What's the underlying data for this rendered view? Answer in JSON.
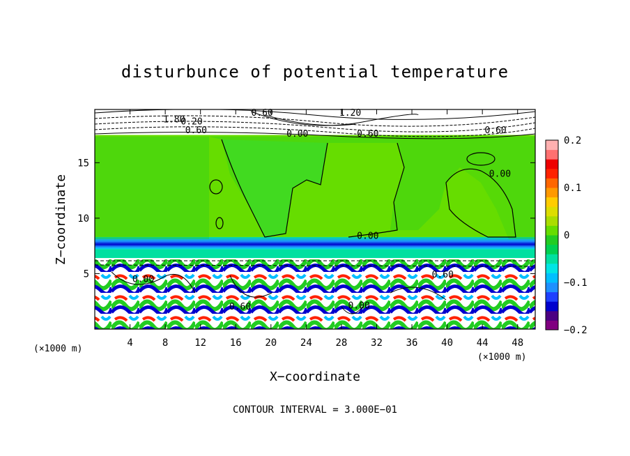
{
  "chart_data": {
    "type": "heatmap",
    "title": "disturbunce of potential temperature",
    "xlabel": "X−coordinate",
    "ylabel": "Z−coordinate",
    "x_unit_left": "(×1000 m)",
    "x_unit_right": "(×1000 m)",
    "xlim": [
      0,
      50
    ],
    "ylim": [
      0,
      19.8
    ],
    "x_ticks": [
      4,
      8,
      12,
      16,
      20,
      24,
      28,
      32,
      36,
      40,
      44,
      48
    ],
    "y_ticks": [
      5,
      10,
      15
    ],
    "footer": "CONTOUR INTERVAL = 3.000E−01",
    "colorbar": {
      "min": -0.2,
      "max": 0.2,
      "tick_values": [
        0.2,
        0.1,
        0,
        -0.1,
        -0.2
      ],
      "tick_labels": [
        "0.2",
        "0.1",
        "0",
        "−0.1",
        "−0.2"
      ],
      "colors": [
        "#800080",
        "#4b0082",
        "#0000cd",
        "#1e40ff",
        "#1e90ff",
        "#00bfff",
        "#00e5e5",
        "#00e0a0",
        "#00d050",
        "#22cc22",
        "#66dd00",
        "#aadd00",
        "#dddd00",
        "#ffcc00",
        "#ff9900",
        "#ff6600",
        "#ff2200",
        "#ee0000",
        "#ff7070",
        "#ffb0b0"
      ]
    },
    "contour_labels": [
      {
        "text": "0.60",
        "x": 19,
        "y": 19.5
      },
      {
        "text": "1.20",
        "x": 29,
        "y": 19.5
      },
      {
        "text": "1.80",
        "x": 9,
        "y": 18.9
      },
      {
        "text": "0.20",
        "x": 11,
        "y": 18.7
      },
      {
        "text": "0.60",
        "x": 11.5,
        "y": 17.9
      },
      {
        "text": "0.00",
        "x": 23,
        "y": 17.6
      },
      {
        "text": "0.60",
        "x": 31,
        "y": 17.6
      },
      {
        "text": "0.60",
        "x": 45.5,
        "y": 17.9
      },
      {
        "text": "0.00",
        "x": 46,
        "y": 14
      },
      {
        "text": "0.00",
        "x": 31,
        "y": 8.4
      },
      {
        "text": "0.60",
        "x": 39.5,
        "y": 4.9
      },
      {
        "text": "0.00",
        "x": 5.5,
        "y": 4.5
      },
      {
        "text": "0.60",
        "x": 16.5,
        "y": 2
      },
      {
        "text": "0.00",
        "x": 30,
        "y": 2.1
      }
    ],
    "bands": [
      {
        "z_bottom": 17.5,
        "z_top": 19.8,
        "value": 0
      },
      {
        "z_bottom": 8.3,
        "z_top": 17.5,
        "value": 0.02
      },
      {
        "z_bottom": 7.2,
        "z_top": 8.3,
        "value": -0.1
      },
      {
        "z_bottom": 6.4,
        "z_top": 7.2,
        "value": -0.06
      },
      {
        "z_bottom": 0,
        "z_top": 6.4,
        "value": 0
      }
    ],
    "grid": false,
    "legend": "colorbar-right"
  }
}
